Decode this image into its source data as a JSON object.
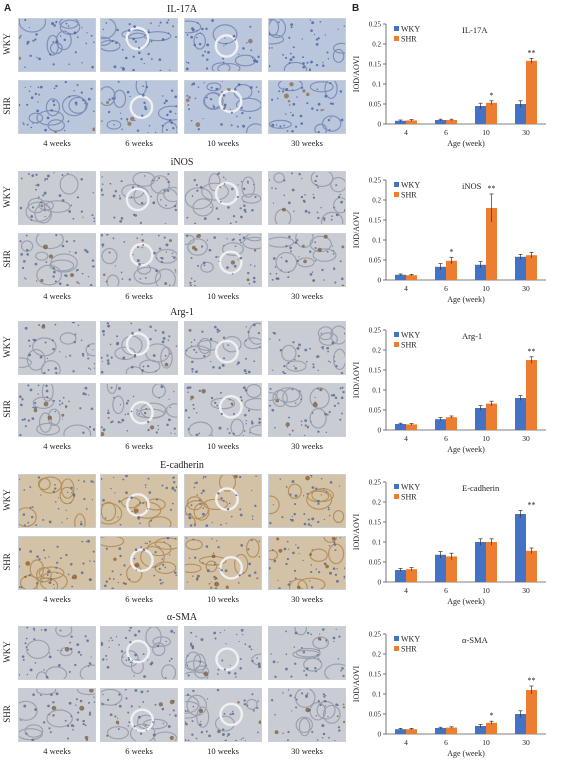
{
  "panel_a_label": "A",
  "panel_b_label": "B",
  "row_labels": [
    "WKY",
    "SHR"
  ],
  "week_labels": [
    "4 weeks",
    "6 weeks",
    "10 weeks",
    "30 weeks"
  ],
  "stain_blocks": [
    {
      "title": "IL-17A",
      "theme": "blue"
    },
    {
      "title": "iNOS",
      "theme": "grey"
    },
    {
      "title": "Arg-1",
      "theme": "grey"
    },
    {
      "title": "E-cadherin",
      "theme": "brown"
    },
    {
      "title": "α-SMA",
      "theme": "grey"
    }
  ],
  "colors": {
    "wky": "#4472c4",
    "shr": "#ed7d31",
    "axis": "#555555"
  },
  "chart_data": [
    {
      "type": "bar",
      "title": "IL-17A",
      "categories": [
        "4",
        "6",
        "10",
        "30"
      ],
      "xlabel": "Age (week)",
      "ylabel": "IOD/AOVI",
      "ylim": [
        0,
        0.25
      ],
      "yticks": [
        0,
        0.05,
        0.1,
        0.15,
        0.2,
        0.25
      ],
      "tick_labels": [
        "0",
        "0.05",
        "0.1",
        "0.15",
        "0.2",
        "0.25"
      ],
      "legend_position": "top-left",
      "series": [
        {
          "name": "WKY",
          "values": [
            0.008,
            0.01,
            0.045,
            0.05
          ],
          "errors": [
            0.002,
            0.002,
            0.007,
            0.008
          ]
        },
        {
          "name": "SHR",
          "values": [
            0.009,
            0.01,
            0.053,
            0.158
          ],
          "errors": [
            0.002,
            0.002,
            0.005,
            0.006
          ]
        }
      ],
      "significance": [
        {
          "category": "10",
          "label": "*"
        },
        {
          "category": "30",
          "label": "**"
        }
      ]
    },
    {
      "type": "bar",
      "title": "iNOS",
      "categories": [
        "4",
        "6",
        "10",
        "30"
      ],
      "xlabel": "Age (week)",
      "ylabel": "IOD/AOVI",
      "ylim": [
        0,
        0.25
      ],
      "yticks": [
        0,
        0.05,
        0.1,
        0.15,
        0.2,
        0.25
      ],
      "tick_labels": [
        "0",
        "0.05",
        "0.1",
        "0.15",
        "0.2",
        "0.25"
      ],
      "legend_position": "top-left",
      "series": [
        {
          "name": "WKY",
          "values": [
            0.013,
            0.033,
            0.038,
            0.058
          ],
          "errors": [
            0.002,
            0.008,
            0.008,
            0.006
          ]
        },
        {
          "name": "SHR",
          "values": [
            0.012,
            0.048,
            0.18,
            0.062
          ],
          "errors": [
            0.002,
            0.008,
            0.035,
            0.007
          ]
        }
      ],
      "significance": [
        {
          "category": "6",
          "label": "*"
        },
        {
          "category": "10",
          "label": "**"
        }
      ]
    },
    {
      "type": "bar",
      "title": "Arg-1",
      "categories": [
        "4",
        "6",
        "10",
        "30"
      ],
      "xlabel": "Age (week)",
      "ylabel": "IOD/AOVI",
      "ylim": [
        0,
        0.25
      ],
      "yticks": [
        0,
        0.05,
        0.1,
        0.15,
        0.2,
        0.25
      ],
      "tick_labels": [
        "0",
        "0.05",
        "0.1",
        "0.15",
        "0.2",
        "0.25"
      ],
      "legend_position": "top-left",
      "series": [
        {
          "name": "WKY",
          "values": [
            0.015,
            0.027,
            0.055,
            0.08
          ],
          "errors": [
            0.002,
            0.004,
            0.006,
            0.006
          ]
        },
        {
          "name": "SHR",
          "values": [
            0.014,
            0.032,
            0.066,
            0.175
          ],
          "errors": [
            0.002,
            0.003,
            0.006,
            0.008
          ]
        }
      ],
      "significance": [
        {
          "category": "30",
          "label": "**"
        }
      ]
    },
    {
      "type": "bar",
      "title": "E-cadherin",
      "categories": [
        "4",
        "6",
        "10",
        "30"
      ],
      "xlabel": "Age (week)",
      "ylabel": "IOD/AOVI",
      "ylim": [
        0,
        0.25
      ],
      "yticks": [
        0,
        0.05,
        0.1,
        0.15,
        0.2,
        0.25
      ],
      "tick_labels": [
        "0",
        "0.05",
        "0.1",
        "0.15",
        "0.2",
        "0.25"
      ],
      "legend_position": "top-left",
      "series": [
        {
          "name": "WKY",
          "values": [
            0.03,
            0.068,
            0.1,
            0.17
          ],
          "errors": [
            0.004,
            0.008,
            0.008,
            0.009
          ]
        },
        {
          "name": "SHR",
          "values": [
            0.032,
            0.064,
            0.1,
            0.078
          ],
          "errors": [
            0.004,
            0.008,
            0.008,
            0.007
          ]
        }
      ],
      "significance": [
        {
          "category": "30",
          "label": "**"
        }
      ]
    },
    {
      "type": "bar",
      "title": "α-SMA",
      "categories": [
        "4",
        "6",
        "10",
        "30"
      ],
      "xlabel": "Age (week)",
      "ylabel": "IOD/AOVI",
      "ylim": [
        0,
        0.25
      ],
      "yticks": [
        0,
        0.05,
        0.1,
        0.15,
        0.2,
        0.25
      ],
      "tick_labels": [
        "0",
        "0.05",
        "0.1",
        "0.15",
        "0.2",
        "0.25"
      ],
      "legend_position": "top-left",
      "series": [
        {
          "name": "WKY",
          "values": [
            0.012,
            0.015,
            0.02,
            0.05
          ],
          "errors": [
            0.002,
            0.002,
            0.004,
            0.008
          ]
        },
        {
          "name": "SHR",
          "values": [
            0.012,
            0.016,
            0.028,
            0.11
          ],
          "errors": [
            0.002,
            0.002,
            0.004,
            0.01
          ]
        }
      ],
      "significance": [
        {
          "category": "10",
          "label": "*"
        },
        {
          "category": "30",
          "label": "**"
        }
      ]
    }
  ]
}
